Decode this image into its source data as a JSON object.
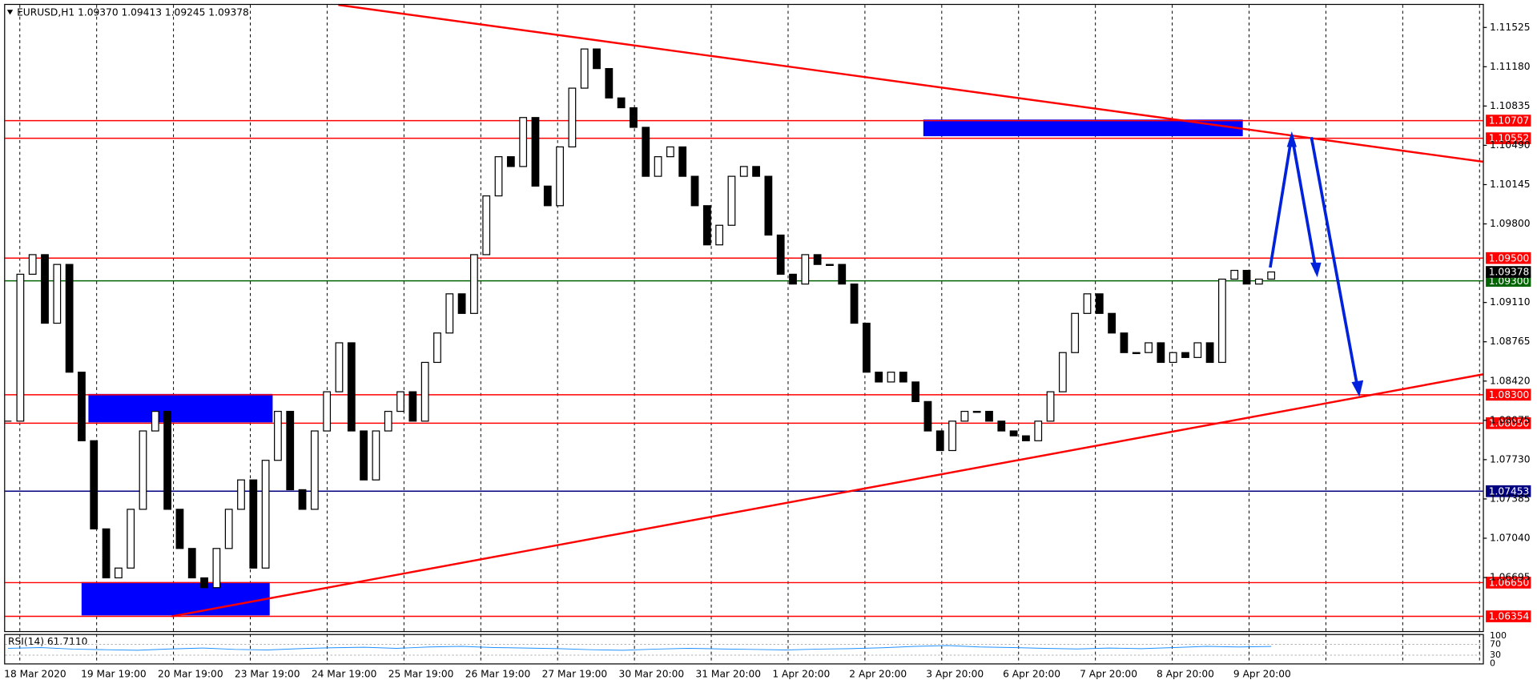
{
  "chart_data": {
    "type": "candlestick",
    "title": "EURUSD,H1  1.09370 1.09413 1.09245 1.09378",
    "categories": [
      "18 Mar 2020",
      "19 Mar 19:00",
      "20 Mar 19:00",
      "23 Mar 19:00",
      "24 Mar 19:00",
      "25 Mar 19:00",
      "26 Mar 19:00",
      "27 Mar 19:00",
      "30 Mar 20:00",
      "31 Mar 20:00",
      "1 Apr 20:00",
      "2 Apr 20:00",
      "3 Apr 20:00",
      "6 Apr 20:00",
      "7 Apr 20:00",
      "8 Apr 20:00",
      "9 Apr 20:00",
      null,
      null,
      null
    ],
    "close": [
      1.08068,
      1.09358,
      1.0953,
      1.08928,
      1.09444,
      1.08498,
      1.07896,
      1.07122,
      1.06692,
      1.06778,
      1.07294,
      1.07982,
      1.08154,
      1.07294,
      1.0695,
      1.06692,
      1.06606,
      1.0695,
      1.07294,
      1.07552,
      1.06778,
      1.07724,
      1.08154,
      1.07466,
      1.07294,
      1.07982,
      1.08326,
      1.08756,
      1.07982,
      1.07552,
      1.07982,
      1.08154,
      1.08326,
      1.08068,
      1.08584,
      1.08842,
      1.09186,
      1.09014,
      1.0953,
      1.10046,
      1.1039,
      1.10304,
      1.10734,
      1.10132,
      1.0996,
      1.10476,
      1.10992,
      1.11336,
      1.11164,
      1.10906,
      1.1082,
      1.10648,
      1.10218,
      1.1039,
      1.10476,
      1.10218,
      1.0996,
      1.09616,
      1.09788,
      1.10218,
      1.10304,
      1.10218,
      1.09702,
      1.09358,
      1.09272,
      1.0953,
      1.09444,
      1.09444,
      1.09272,
      1.08928,
      1.08498,
      1.08412,
      1.08498,
      1.08412,
      1.0824,
      1.07982,
      1.0781,
      1.08068,
      1.08154,
      1.08154,
      1.08068,
      1.07982,
      1.07939,
      1.07896,
      1.08068,
      1.08326,
      1.0867,
      1.09014,
      1.09186,
      1.09014,
      1.08842,
      1.0867,
      1.0867,
      1.08756,
      1.08584,
      1.0867,
      1.08627,
      1.08756,
      1.08584,
      1.09315,
      1.09392,
      1.09272,
      1.09315,
      1.09378
    ],
    "color": "#000000",
    "ylim": [
      1.06216,
      1.11723
    ],
    "yticks": [
      1.11525,
      {
        "value": 1.1118,
        "label": "1.11180"
      },
      1.10835,
      {
        "value": 1.1049,
        "label": "1.10490"
      },
      1.10145,
      {
        "value": 1.098,
        "label": "1.09800"
      },
      {
        "value": 1.0911,
        "label": "1.09110"
      },
      1.08765,
      {
        "value": 1.0842,
        "label": "1.08420"
      },
      1.08075,
      {
        "value": 1.0773,
        "label": "1.07730"
      },
      1.07385,
      {
        "value": 1.0704,
        "label": "1.07040"
      },
      1.06695
    ],
    "levels": [
      {
        "value": 1.10707,
        "color": "#ff0000"
      },
      {
        "value": 1.10552,
        "color": "#ff0000"
      },
      {
        "value": 1.095,
        "label": "1.09500",
        "color": "#ff0000"
      },
      {
        "value": 1.093,
        "label": "1.09300",
        "color": "#006400"
      },
      {
        "value": 1.083,
        "label": "1.08300",
        "color": "#ff0000"
      },
      {
        "value": 1.0805,
        "label": "1.08050",
        "color": "#ff0000"
      },
      {
        "value": 1.07453,
        "color": "#000080"
      },
      {
        "value": 1.0665,
        "label": "1.06650",
        "color": "#ff0000"
      },
      {
        "value": 1.06354,
        "color": "#ff0000"
      }
    ],
    "bid": {
      "value": 1.09378,
      "color": "#000000"
    },
    "rsi": {
      "label": "RSI(14) 61.7110",
      "color": "#1e90ff",
      "ylim": [
        0,
        100
      ],
      "yticks": [
        100,
        70,
        30,
        0
      ],
      "values": [
        55,
        58,
        52,
        50,
        48,
        53,
        56,
        51,
        49,
        54,
        57,
        59,
        55,
        60,
        62,
        58,
        56,
        54,
        50,
        48,
        52,
        55,
        53,
        51,
        49,
        52,
        54,
        57,
        62,
        65,
        60,
        58,
        55,
        53,
        56,
        54,
        58,
        62,
        60,
        61.711
      ]
    }
  }
}
